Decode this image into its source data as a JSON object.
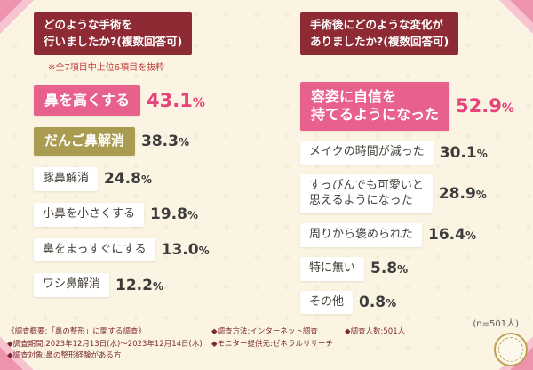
{
  "units": {
    "percent": "%"
  },
  "left": {
    "title": "どのような手術を\n行いましたか?(複数回答可)",
    "note": "※全7項目中上位6項目を抜粋",
    "items": [
      {
        "label": "鼻を高くする",
        "value": "43.1"
      },
      {
        "label": "だんご鼻解消",
        "value": "38.3"
      },
      {
        "label": "豚鼻解消",
        "value": "24.8"
      },
      {
        "label": "小鼻を小さくする",
        "value": "19.8"
      },
      {
        "label": "鼻をまっすぐにする",
        "value": "13.0"
      },
      {
        "label": "ワシ鼻解消",
        "value": "12.2"
      }
    ]
  },
  "right": {
    "title": "手術後にどのような変化が\nありましたか?(複数回答可)",
    "items": [
      {
        "label": "容姿に自信を\n持てるようになった",
        "value": "52.9"
      },
      {
        "label": "メイクの時間が減った",
        "value": "30.1"
      },
      {
        "label": "すっぴんでも可愛いと\n思えるようになった",
        "value": "28.9"
      },
      {
        "label": "周りから褒められた",
        "value": "16.4"
      },
      {
        "label": "特に無い",
        "value": "5.8"
      },
      {
        "label": "その他",
        "value": "0.8"
      }
    ],
    "n_label": "(n=501人)"
  },
  "footer": {
    "title": "《調査概要:「鼻の整形」に関する調査》",
    "period": "◆調査期間:2023年12月13日(水)〜2023年12月14日(木)",
    "subject": "◆調査対象:鼻の整形経験がある方",
    "method": "◆調査方法:インターネット調査",
    "monitor": "◆モニター提供元:ゼネラルリサーチ",
    "count": "◆調査人数:501人"
  },
  "chart_data": [
    {
      "type": "bar",
      "orientation": "horizontal",
      "title": "どのような手術を行いましたか?(複数回答可)",
      "note": "※全7項目中上位6項目を抜粋",
      "categories": [
        "鼻を高くする",
        "だんご鼻解消",
        "豚鼻解消",
        "小鼻を小さくする",
        "鼻をまっすぐにする",
        "ワシ鼻解消"
      ],
      "values": [
        43.1,
        38.3,
        24.8,
        19.8,
        13.0,
        12.2
      ],
      "unit": "%",
      "xlim": [
        0,
        60
      ],
      "highlight_colors": {
        "top1": "#e8618c",
        "top2": "#a99b50",
        "others": "#ffffff"
      }
    },
    {
      "type": "bar",
      "orientation": "horizontal",
      "title": "手術後にどのような変化がありましたか?(複数回答可)",
      "categories": [
        "容姿に自信を持てるようになった",
        "メイクの時間が減った",
        "すっぴんでも可愛いと思えるようになった",
        "周りから褒められた",
        "特に無い",
        "その他"
      ],
      "values": [
        52.9,
        30.1,
        28.9,
        16.4,
        5.8,
        0.8
      ],
      "unit": "%",
      "n": 501,
      "xlim": [
        0,
        60
      ],
      "highlight_colors": {
        "top1": "#e8618c",
        "others": "#ffffff"
      }
    }
  ]
}
